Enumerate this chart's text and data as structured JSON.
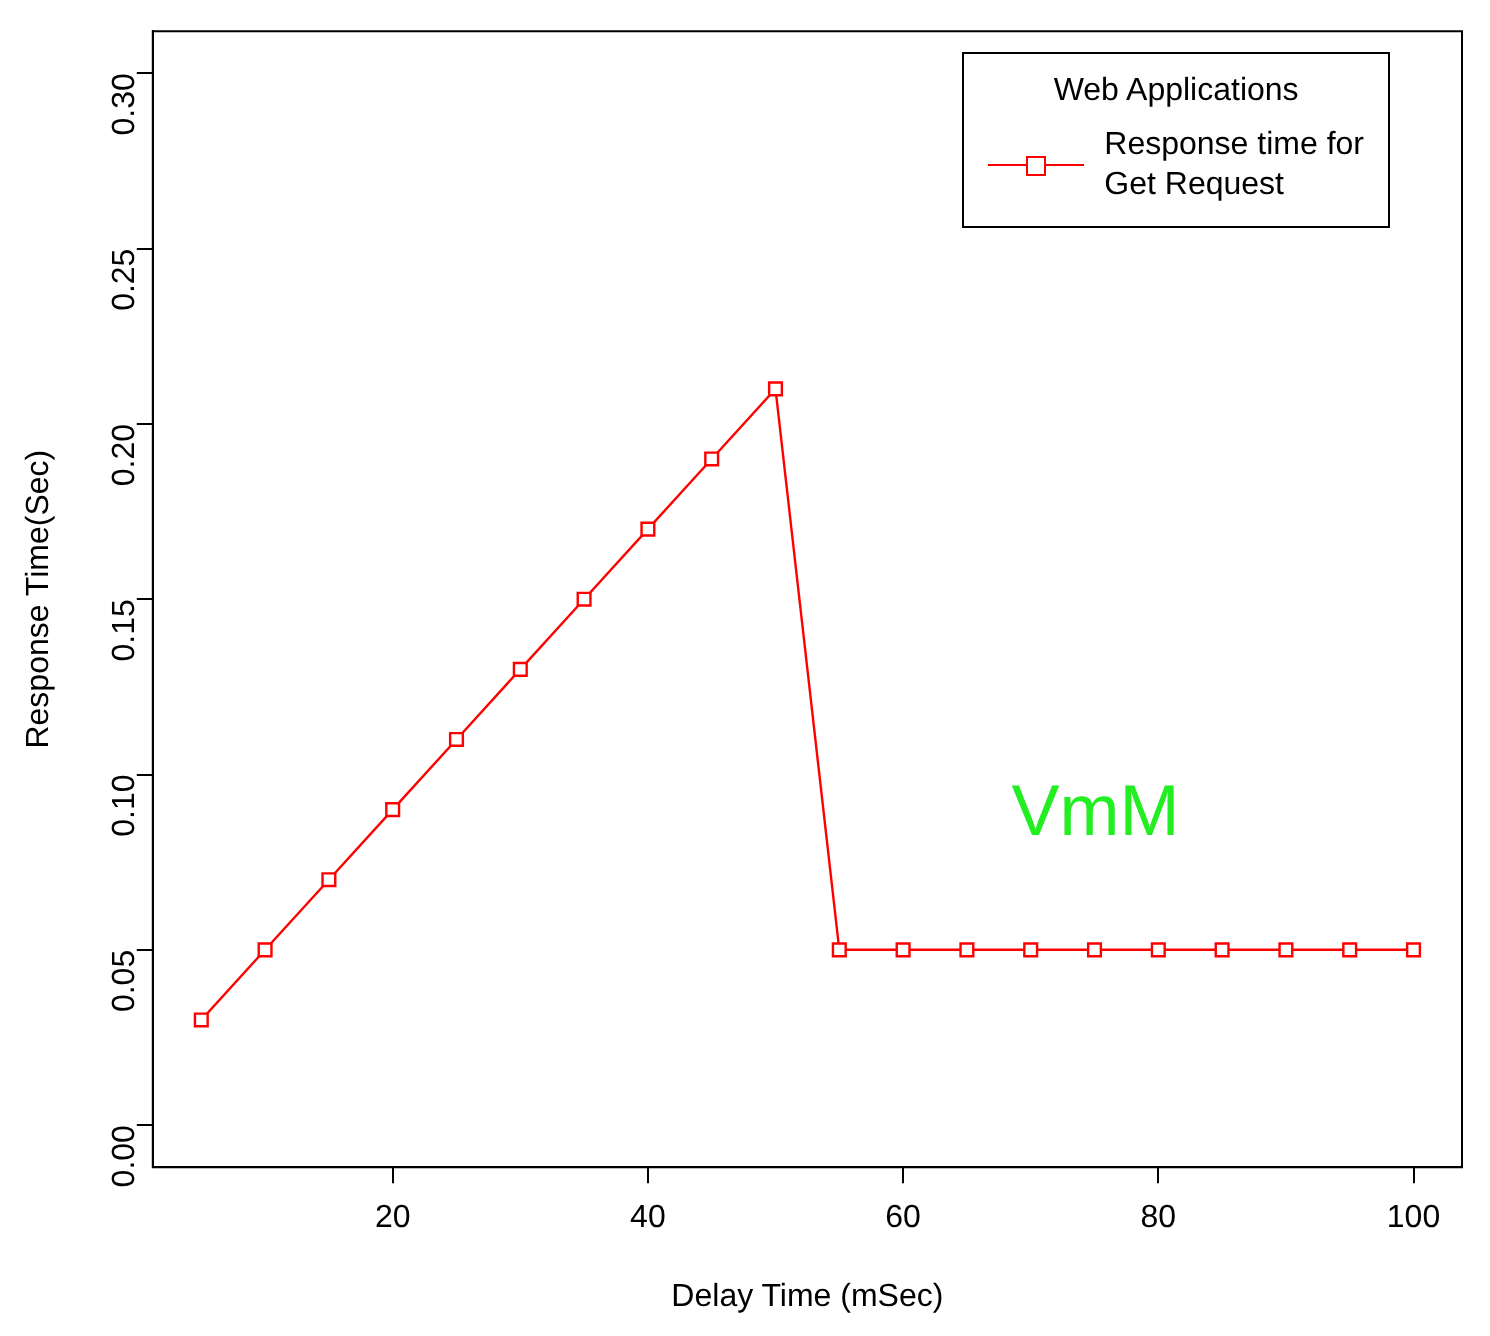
{
  "chart_data": {
    "type": "line",
    "xlabel": "Delay Time (mSec)",
    "ylabel": "Response Time(Sec)",
    "legend_title": "Web Applications",
    "x": [
      5,
      10,
      15,
      20,
      25,
      30,
      35,
      40,
      45,
      50,
      55,
      60,
      65,
      70,
      75,
      80,
      85,
      90,
      95,
      100
    ],
    "series": [
      {
        "name": "Response time for\nGet Request",
        "color": "#ff0000",
        "values": [
          0.03,
          0.05,
          0.07,
          0.09,
          0.11,
          0.13,
          0.15,
          0.17,
          0.19,
          0.21,
          0.05,
          0.05,
          0.05,
          0.05,
          0.05,
          0.05,
          0.05,
          0.05,
          0.05,
          0.05
        ]
      }
    ],
    "xlim": [
      1.2,
      103.8
    ],
    "xticks": [
      20,
      40,
      60,
      80,
      100
    ],
    "ylim": [
      -0.012,
      0.312
    ],
    "yticks": [
      {
        "value": 0,
        "label": "0.00"
      },
      {
        "value": 0.05,
        "label": "0.05"
      },
      {
        "value": 0.1,
        "label": "0.10"
      },
      {
        "value": 0.15,
        "label": "0.15"
      },
      {
        "value": 0.2,
        "label": "0.20"
      },
      {
        "value": 0.25,
        "label": "0.25"
      },
      {
        "value": 0.3,
        "label": "0.30"
      }
    ],
    "annotations": [
      "VmM"
    ],
    "grid": false,
    "legend": "top right",
    "marker": "square",
    "line_style": "solid"
  }
}
